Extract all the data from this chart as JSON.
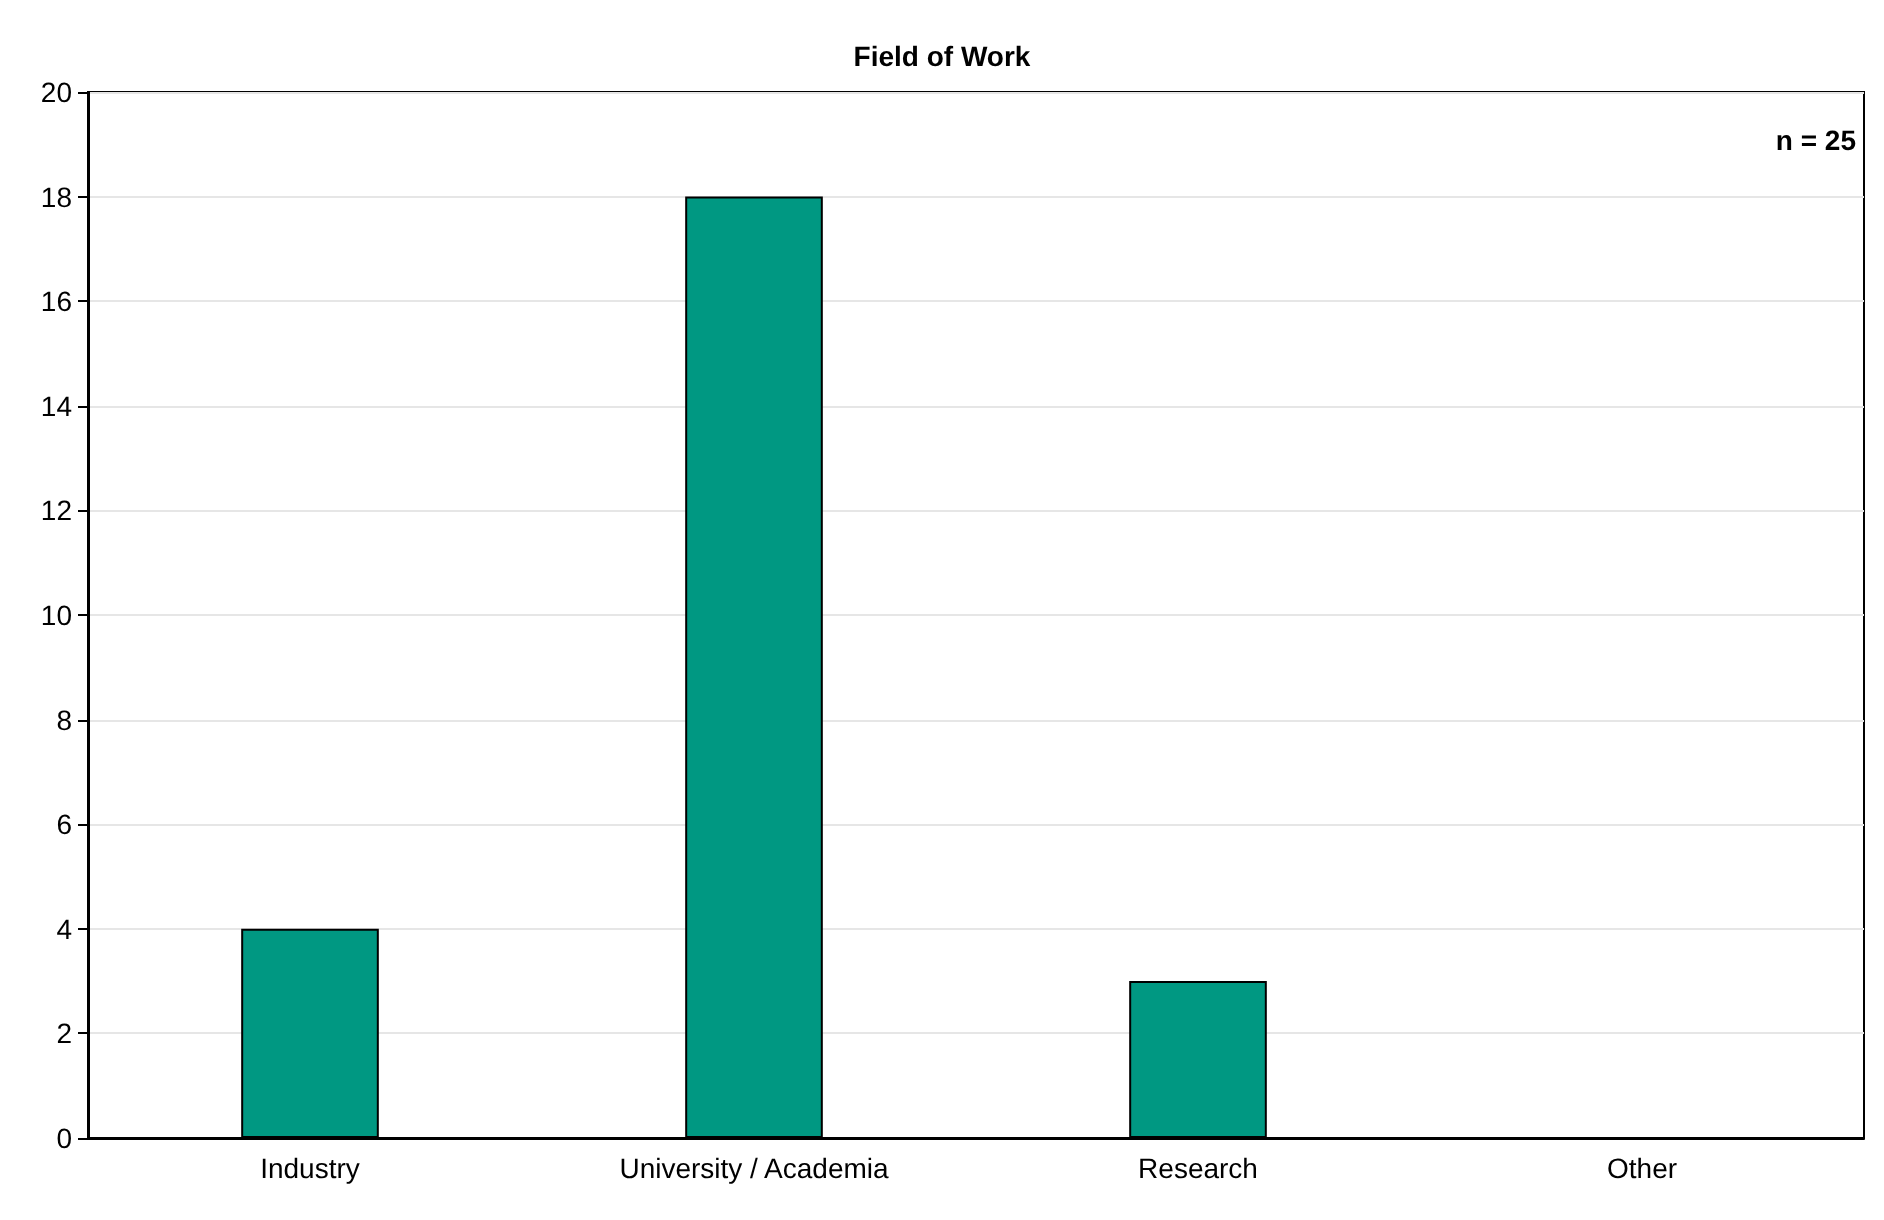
{
  "chart_data": {
    "type": "bar",
    "title": "Field of Work",
    "categories": [
      "Industry",
      "University / Academia",
      "Research",
      "Other"
    ],
    "values": [
      4,
      18,
      3,
      0
    ],
    "color": "#009882",
    "ylim": [
      0,
      20
    ],
    "yticks": [
      0,
      2,
      4,
      6,
      8,
      10,
      12,
      14,
      16,
      18,
      20
    ],
    "grid": "y",
    "annotations": [
      "n = 25"
    ]
  }
}
